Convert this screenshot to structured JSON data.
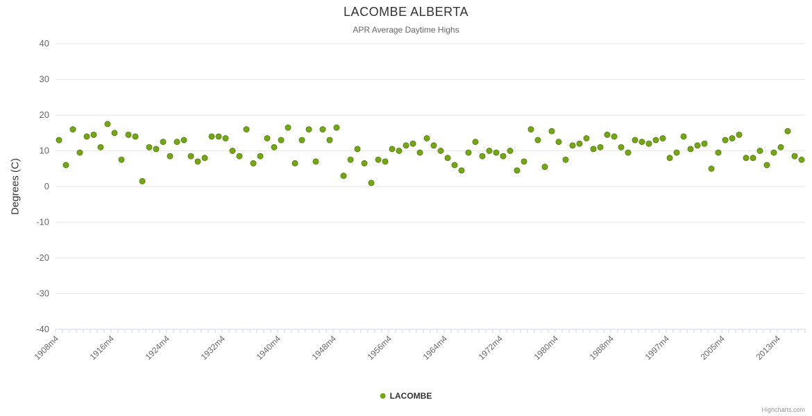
{
  "chart_data": {
    "type": "scatter",
    "title": "LACOMBE ALBERTA",
    "subtitle": "APR Average Daytime Highs",
    "ylabel": "Degrees (C)",
    "ylim": [
      -40,
      40
    ],
    "ytick_step": 10,
    "ytick_labels": [
      "40",
      "30",
      "20",
      "10",
      "0",
      "-10",
      "-20",
      "-30",
      "-40"
    ],
    "grid": true,
    "legend_position": "bottom-center",
    "credits": "Highcharts.com",
    "xtick_indices": [
      0,
      8,
      16,
      24,
      32,
      40,
      48,
      56,
      64,
      72,
      80,
      88,
      96,
      104
    ],
    "xtick_labels": [
      "1908m4",
      "1916m4",
      "1924m4",
      "1932m4",
      "1940m4",
      "1948m4",
      "1956m4",
      "1964m4",
      "1972m4",
      "1980m4",
      "1988m4",
      "1997m4",
      "2005m4",
      "2013m4"
    ],
    "series": [
      {
        "name": "LACOMBE",
        "color": "#74a617",
        "x": [
          1908,
          1909,
          1910,
          1911,
          1912,
          1913,
          1914,
          1915,
          1916,
          1917,
          1918,
          1919,
          1920,
          1921,
          1922,
          1923,
          1924,
          1925,
          1926,
          1927,
          1928,
          1929,
          1930,
          1931,
          1932,
          1933,
          1934,
          1935,
          1936,
          1937,
          1938,
          1939,
          1940,
          1941,
          1942,
          1943,
          1944,
          1945,
          1946,
          1947,
          1948,
          1949,
          1950,
          1951,
          1952,
          1953,
          1954,
          1955,
          1956,
          1957,
          1958,
          1959,
          1960,
          1961,
          1962,
          1963,
          1964,
          1965,
          1966,
          1967,
          1968,
          1969,
          1970,
          1971,
          1972,
          1973,
          1974,
          1975,
          1976,
          1977,
          1978,
          1979,
          1980,
          1981,
          1982,
          1983,
          1984,
          1985,
          1986,
          1987,
          1988,
          1989,
          1990,
          1991,
          1992,
          1993,
          1994,
          1995,
          1997,
          1998,
          1999,
          2000,
          2001,
          2002,
          2003,
          2004,
          2005,
          2006,
          2007,
          2008,
          2009,
          2010,
          2011,
          2012,
          2013,
          2014,
          2015,
          2016
        ],
        "values": [
          13,
          6,
          16,
          9.5,
          14,
          14.5,
          11,
          17.5,
          15,
          7.5,
          14.5,
          14,
          1.5,
          11,
          10.5,
          12.5,
          8.5,
          12.5,
          13,
          8.5,
          7,
          8,
          14,
          14,
          13.5,
          10,
          8.5,
          16,
          6.5,
          8.5,
          13.5,
          11,
          13,
          16.5,
          6.5,
          13,
          16,
          7,
          16,
          13,
          16.5,
          3,
          7.5,
          10.5,
          6.5,
          1,
          7.5,
          7,
          10.5,
          10,
          11.5,
          12,
          9.5,
          13.5,
          11.5,
          10,
          8,
          6,
          4.5,
          9.5,
          12.5,
          8.5,
          10,
          9.5,
          8.5,
          10,
          4.5,
          7,
          16,
          13,
          5.5,
          15.5,
          12.5,
          7.5,
          11.5,
          12,
          13.5,
          10.5,
          11,
          14.5,
          14,
          11,
          9.5,
          13,
          12.5,
          12,
          13,
          13.5,
          8,
          9.5,
          14,
          10.5,
          11.5,
          12,
          5,
          9.5,
          13,
          13.5,
          14.5,
          8,
          8,
          10,
          6,
          9.5,
          11,
          15.5,
          8.5,
          7.5
        ]
      }
    ]
  }
}
